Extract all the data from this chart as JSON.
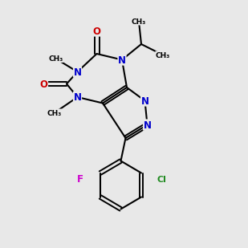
{
  "bg_color": "#e8e8e8",
  "bond_color": "#000000",
  "N_color": "#0000cc",
  "O_color": "#cc0000",
  "F_color": "#cc00cc",
  "Cl_color": "#228B22"
}
